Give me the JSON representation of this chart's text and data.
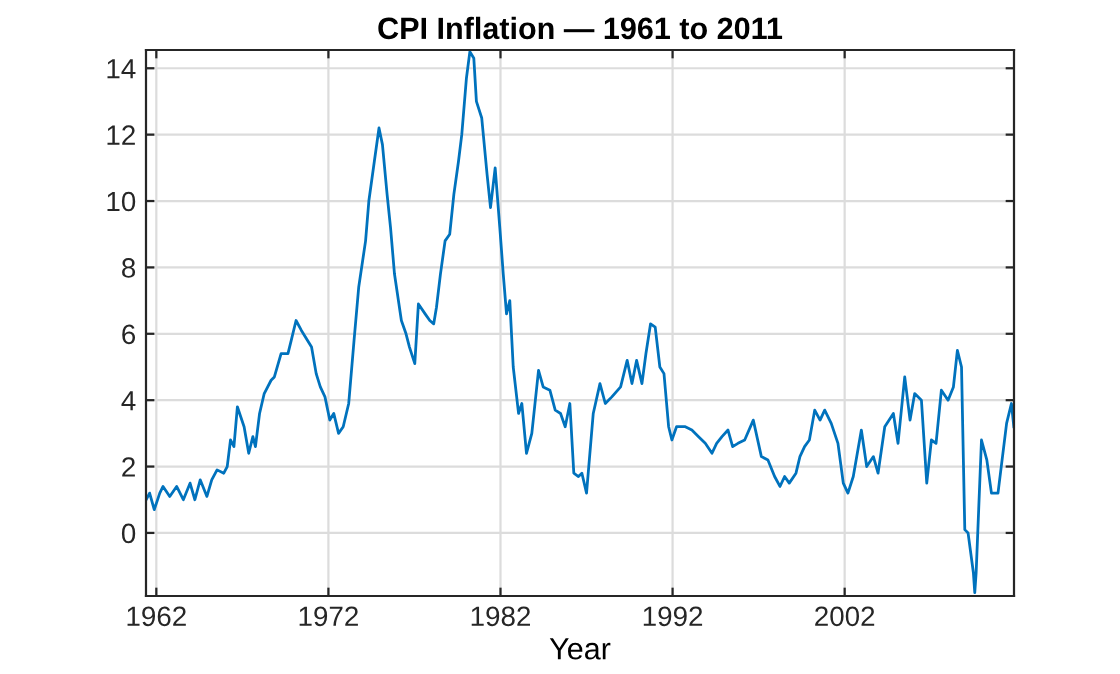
{
  "chart_data": {
    "type": "line",
    "title": "CPI Inflation — 1961 to 2011",
    "xlabel": "Year",
    "xlim": [
      1961.4,
      2011.84
    ],
    "ylim": [
      -1.9,
      14.55
    ],
    "xticks": [
      1962,
      1972,
      1982,
      1992,
      2002
    ],
    "yticks": [
      0,
      2,
      4,
      6,
      8,
      10,
      12,
      14
    ],
    "grid": true,
    "line_style": "solid",
    "marker": "none",
    "series": [
      {
        "color": "#0072bd",
        "x": [
          1961.41,
          1961.61,
          1961.88,
          1962.2,
          1962.39,
          1962.78,
          1963.18,
          1963.57,
          1963.96,
          1964.24,
          1964.55,
          1964.94,
          1965.22,
          1965.53,
          1965.92,
          1966.12,
          1966.31,
          1966.51,
          1966.71,
          1967.1,
          1967.37,
          1967.61,
          1967.76,
          1968.0,
          1968.27,
          1968.67,
          1968.86,
          1969.25,
          1969.65,
          1969.84,
          1970.12,
          1970.43,
          1971.02,
          1971.29,
          1971.53,
          1971.8,
          1972.08,
          1972.31,
          1972.59,
          1972.86,
          1973.18,
          1973.49,
          1973.76,
          1974.16,
          1974.35,
          1974.67,
          1974.94,
          1975.14,
          1975.41,
          1975.61,
          1975.84,
          1976.24,
          1976.51,
          1976.71,
          1977.02,
          1977.23,
          1977.62,
          1977.89,
          1978.12,
          1978.28,
          1978.51,
          1978.78,
          1979.05,
          1979.29,
          1979.56,
          1979.75,
          1980.02,
          1980.22,
          1980.45,
          1980.6,
          1980.91,
          1981.22,
          1981.42,
          1981.69,
          1981.96,
          1982.16,
          1982.35,
          1982.54,
          1982.74,
          1983.05,
          1983.24,
          1983.51,
          1983.82,
          1984.21,
          1984.48,
          1984.87,
          1985.18,
          1985.49,
          1985.76,
          1986.03,
          1986.26,
          1986.53,
          1986.73,
          1987.0,
          1987.39,
          1987.78,
          1988.09,
          1988.47,
          1988.98,
          1989.36,
          1989.64,
          1989.91,
          1990.22,
          1990.45,
          1990.72,
          1990.99,
          1991.26,
          1991.5,
          1991.77,
          1991.96,
          1992.23,
          1992.74,
          1993.12,
          1993.51,
          1993.9,
          1994.29,
          1994.56,
          1994.87,
          1995.22,
          1995.49,
          1995.8,
          1996.19,
          1996.69,
          1997.16,
          1997.54,
          1997.93,
          1998.24,
          1998.51,
          1998.78,
          1999.17,
          1999.4,
          1999.67,
          1999.95,
          2000.26,
          2000.57,
          2000.84,
          2001.22,
          2001.61,
          2001.92,
          2002.19,
          2002.5,
          2002.97,
          2003.28,
          2003.67,
          2003.94,
          2004.33,
          2004.83,
          2005.1,
          2005.49,
          2005.8,
          2006.07,
          2006.46,
          2006.77,
          2007.04,
          2007.31,
          2007.62,
          2008.01,
          2008.32,
          2008.55,
          2008.79,
          2008.98,
          2009.17,
          2009.48,
          2009.56,
          2009.64,
          2009.95,
          2010.26,
          2010.53,
          2010.91,
          2011.41,
          2011.69,
          2011.83
        ],
        "values": [
          1.0,
          1.2,
          0.7,
          1.2,
          1.4,
          1.1,
          1.4,
          1.0,
          1.5,
          1.0,
          1.6,
          1.1,
          1.6,
          1.9,
          1.8,
          2.0,
          2.8,
          2.6,
          3.8,
          3.2,
          2.4,
          2.9,
          2.6,
          3.6,
          4.2,
          4.6,
          4.7,
          5.4,
          5.4,
          5.8,
          6.4,
          6.1,
          5.6,
          4.8,
          4.4,
          4.1,
          3.4,
          3.6,
          3.0,
          3.2,
          3.9,
          5.8,
          7.4,
          8.8,
          10.0,
          11.2,
          12.2,
          11.7,
          10.2,
          9.2,
          7.8,
          6.4,
          6.0,
          5.6,
          5.1,
          6.9,
          6.6,
          6.4,
          6.3,
          6.8,
          7.8,
          8.8,
          9.0,
          10.2,
          11.2,
          12.0,
          13.7,
          14.5,
          14.3,
          13.0,
          12.5,
          10.8,
          9.8,
          11.0,
          9.2,
          7.8,
          6.6,
          7.0,
          5.0,
          3.6,
          3.9,
          2.4,
          3.0,
          4.9,
          4.4,
          4.3,
          3.7,
          3.6,
          3.2,
          3.9,
          1.8,
          1.7,
          1.8,
          1.2,
          3.6,
          4.5,
          3.9,
          4.1,
          4.4,
          5.2,
          4.5,
          5.2,
          4.5,
          5.4,
          6.3,
          6.2,
          5.0,
          4.8,
          3.2,
          2.8,
          3.2,
          3.2,
          3.1,
          2.9,
          2.7,
          2.4,
          2.7,
          2.9,
          3.1,
          2.6,
          2.7,
          2.8,
          3.4,
          2.3,
          2.2,
          1.7,
          1.4,
          1.7,
          1.5,
          1.8,
          2.3,
          2.6,
          2.8,
          3.7,
          3.4,
          3.7,
          3.3,
          2.7,
          1.5,
          1.2,
          1.7,
          3.1,
          2.0,
          2.3,
          1.8,
          3.2,
          3.6,
          2.7,
          4.7,
          3.4,
          4.2,
          4.0,
          1.5,
          2.8,
          2.7,
          4.3,
          4.0,
          4.4,
          5.5,
          5.0,
          0.1,
          0.0,
          -1.2,
          -1.8,
          -1.2,
          2.8,
          2.2,
          1.2,
          1.2,
          3.3,
          3.9,
          3.2
        ]
      }
    ]
  }
}
